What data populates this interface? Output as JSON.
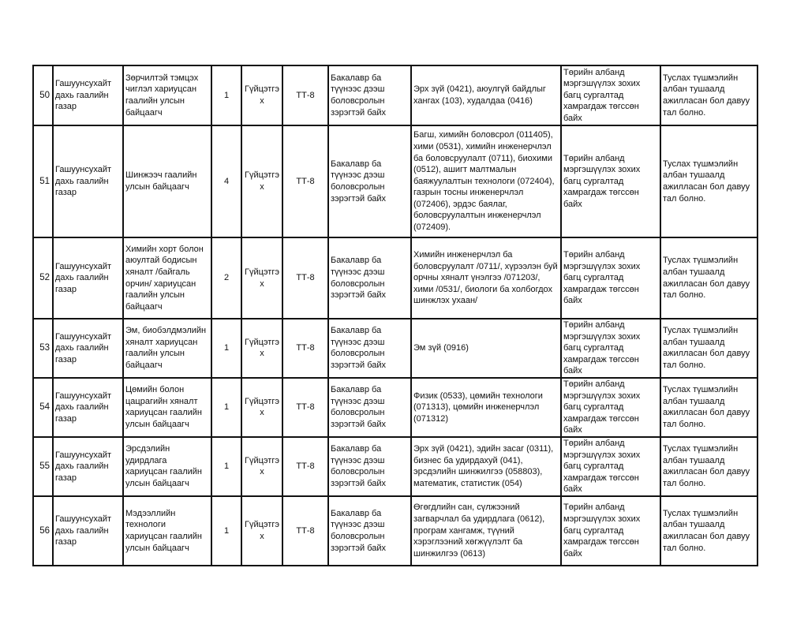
{
  "rows": [
    {
      "no": "50",
      "org": "Гашуунсухайт дахь гаалийн газар",
      "position": "Зөрчилтэй тэмцэх чиглэл хариуцсан гаалийн улсын байцаагч",
      "count": "1",
      "type": "Гүйцэтгэх",
      "grade": "ТТ-8",
      "education": "Бакалавр ба түүнээс дээш боловсролын зэрэгтэй байх",
      "profession": "Эрх зүй (0421), аюулгүй байдлыг хангах (103), худалдаа (0416)",
      "training": "Төрийн албанд мэргэшүүлэх зохих багц сургалтад хамрагдаж төгссөн байх",
      "experience": "Туслах түшмэлийн албан тушаалд ажилласан бол давуу тал болно."
    },
    {
      "no": "51",
      "org": "Гашуунсухайт дахь гаалийн газар",
      "position": "Шинжээч гаалийн улсын байцаагч",
      "count": "4",
      "type": "Гүйцэтгэх",
      "grade": "ТТ-8",
      "education": "Бакалавр ба түүнээс дээш боловсролын зэрэгтэй байх",
      "profession": "Багш, химийн боловсрол (011405), хими (0531), химийн инженерчлэл ба боловсруулалт (0711), биохими (0512), ашигт малтмалын баяжуулалтын технологи (072404), газрын тосны инженерчлэл (072406), эрдэс баялаг, боловсруулалтын инженерчлэл (072409).",
      "training": "Төрийн албанд мэргэшүүлэх зохих багц сургалтад хамрагдаж төгссөн байх",
      "experience": "Туслах түшмэлийн албан тушаалд ажилласан бол давуу тал болно."
    },
    {
      "no": "52",
      "org": "Гашуунсухайт дахь гаалийн газар",
      "position": "Химийн хорт болон аюултай бодисын хяналт /байгаль орчин/ хариуцсан гаалийн улсын байцаагч",
      "count": "2",
      "type": "Гүйцэтгэх",
      "grade": "ТТ-8",
      "education": "Бакалавр ба түүнээс дээш боловсролын зэрэгтэй байх",
      "profession": "Химийн инженерчлэл ба боловсруулалт /0711/, хүрээлэн буй орчны хяналт үнэлгээ /071203/, хими /0531/, биологи ба холбогдох шинжлэх ухаан/",
      "training": "Төрийн албанд мэргэшүүлэх зохих багц сургалтад хамрагдаж төгссөн байх",
      "experience": "Туслах түшмэлийн албан тушаалд ажилласан бол давуу тал болно."
    },
    {
      "no": "53",
      "org": "Гашуунсухайт дахь гаалийн газар",
      "position": "Эм, биобэлдмэлийн хяналт хариуцсан гаалийн улсын байцаагч",
      "count": "1",
      "type": "Гүйцэтгэх",
      "grade": "ТТ-8",
      "education": "Бакалавр ба түүнээс дээш боловсролын зэрэгтэй байх",
      "profession": "Эм зүй (0916)",
      "training": "Төрийн албанд мэргэшүүлэх зохих багц сургалтад хамрагдаж төгссөн байх",
      "experience": "Туслах түшмэлийн албан тушаалд ажилласан бол давуу тал болно."
    },
    {
      "no": "54",
      "org": "Гашуунсухайт дахь гаалийн газар",
      "position": "Цөмийн болон цацрагийн хяналт хариуцсан гаалийн улсын байцаагч",
      "count": "1",
      "type": "Гүйцэтгэх",
      "grade": "ТТ-8",
      "education": "Бакалавр ба түүнээс дээш боловсролын зэрэгтэй байх",
      "profession": "Физик (0533), цөмийн технологи (071313), цөмийн инженерчлэл (071312)",
      "training": "Төрийн албанд мэргэшүүлэх зохих багц сургалтад хамрагдаж төгссөн байх",
      "experience": "Туслах түшмэлийн албан тушаалд ажилласан бол давуу тал болно."
    },
    {
      "no": "55",
      "org": "Гашуунсухайт дахь гаалийн газар",
      "position": "Эрсдэлийн удирдлага хариуцсан гаалийн улсын байцаагч",
      "count": "1",
      "type": "Гүйцэтгэх",
      "grade": "ТТ-8",
      "education": "Бакалавр ба түүнээс дээш боловсролын зэрэгтэй байх",
      "profession": "Эрх зүй (0421), эдийн засаг (0311), бизнес ба удирдахуй (041), эрсдэлийн шинжилгээ (058803), математик, статистик (054)",
      "training": "Төрийн албанд мэргэшүүлэх зохих багц сургалтад хамрагдаж төгссөн байх",
      "experience": "Туслах түшмэлийн албан тушаалд ажилласан бол давуу тал болно."
    },
    {
      "no": "56",
      "org": "Гашуунсухайт дахь гаалийн газар",
      "position": "Мэдээллийн технологи хариуцсан гаалийн улсын байцаагч",
      "count": "1",
      "type": "Гүйцэтгэх",
      "grade": "ТТ-8",
      "education": "Бакалавр ба түүнээс дээш боловсролын зэрэгтэй байх",
      "profession": "Өгөгдлийн сан, сүлжээний загварчлал ба удирдлага (0612), програм хангамж, түүний хэрэглээний хөгжүүлэлт ба шинжилгээ (0613)",
      "training": "Төрийн албанд мэргэшүүлэх зохих багц сургалтад хамрагдаж төгссөн байх",
      "experience": "Туслах түшмэлийн албан тушаалд ажилласан бол давуу тал болно."
    }
  ]
}
